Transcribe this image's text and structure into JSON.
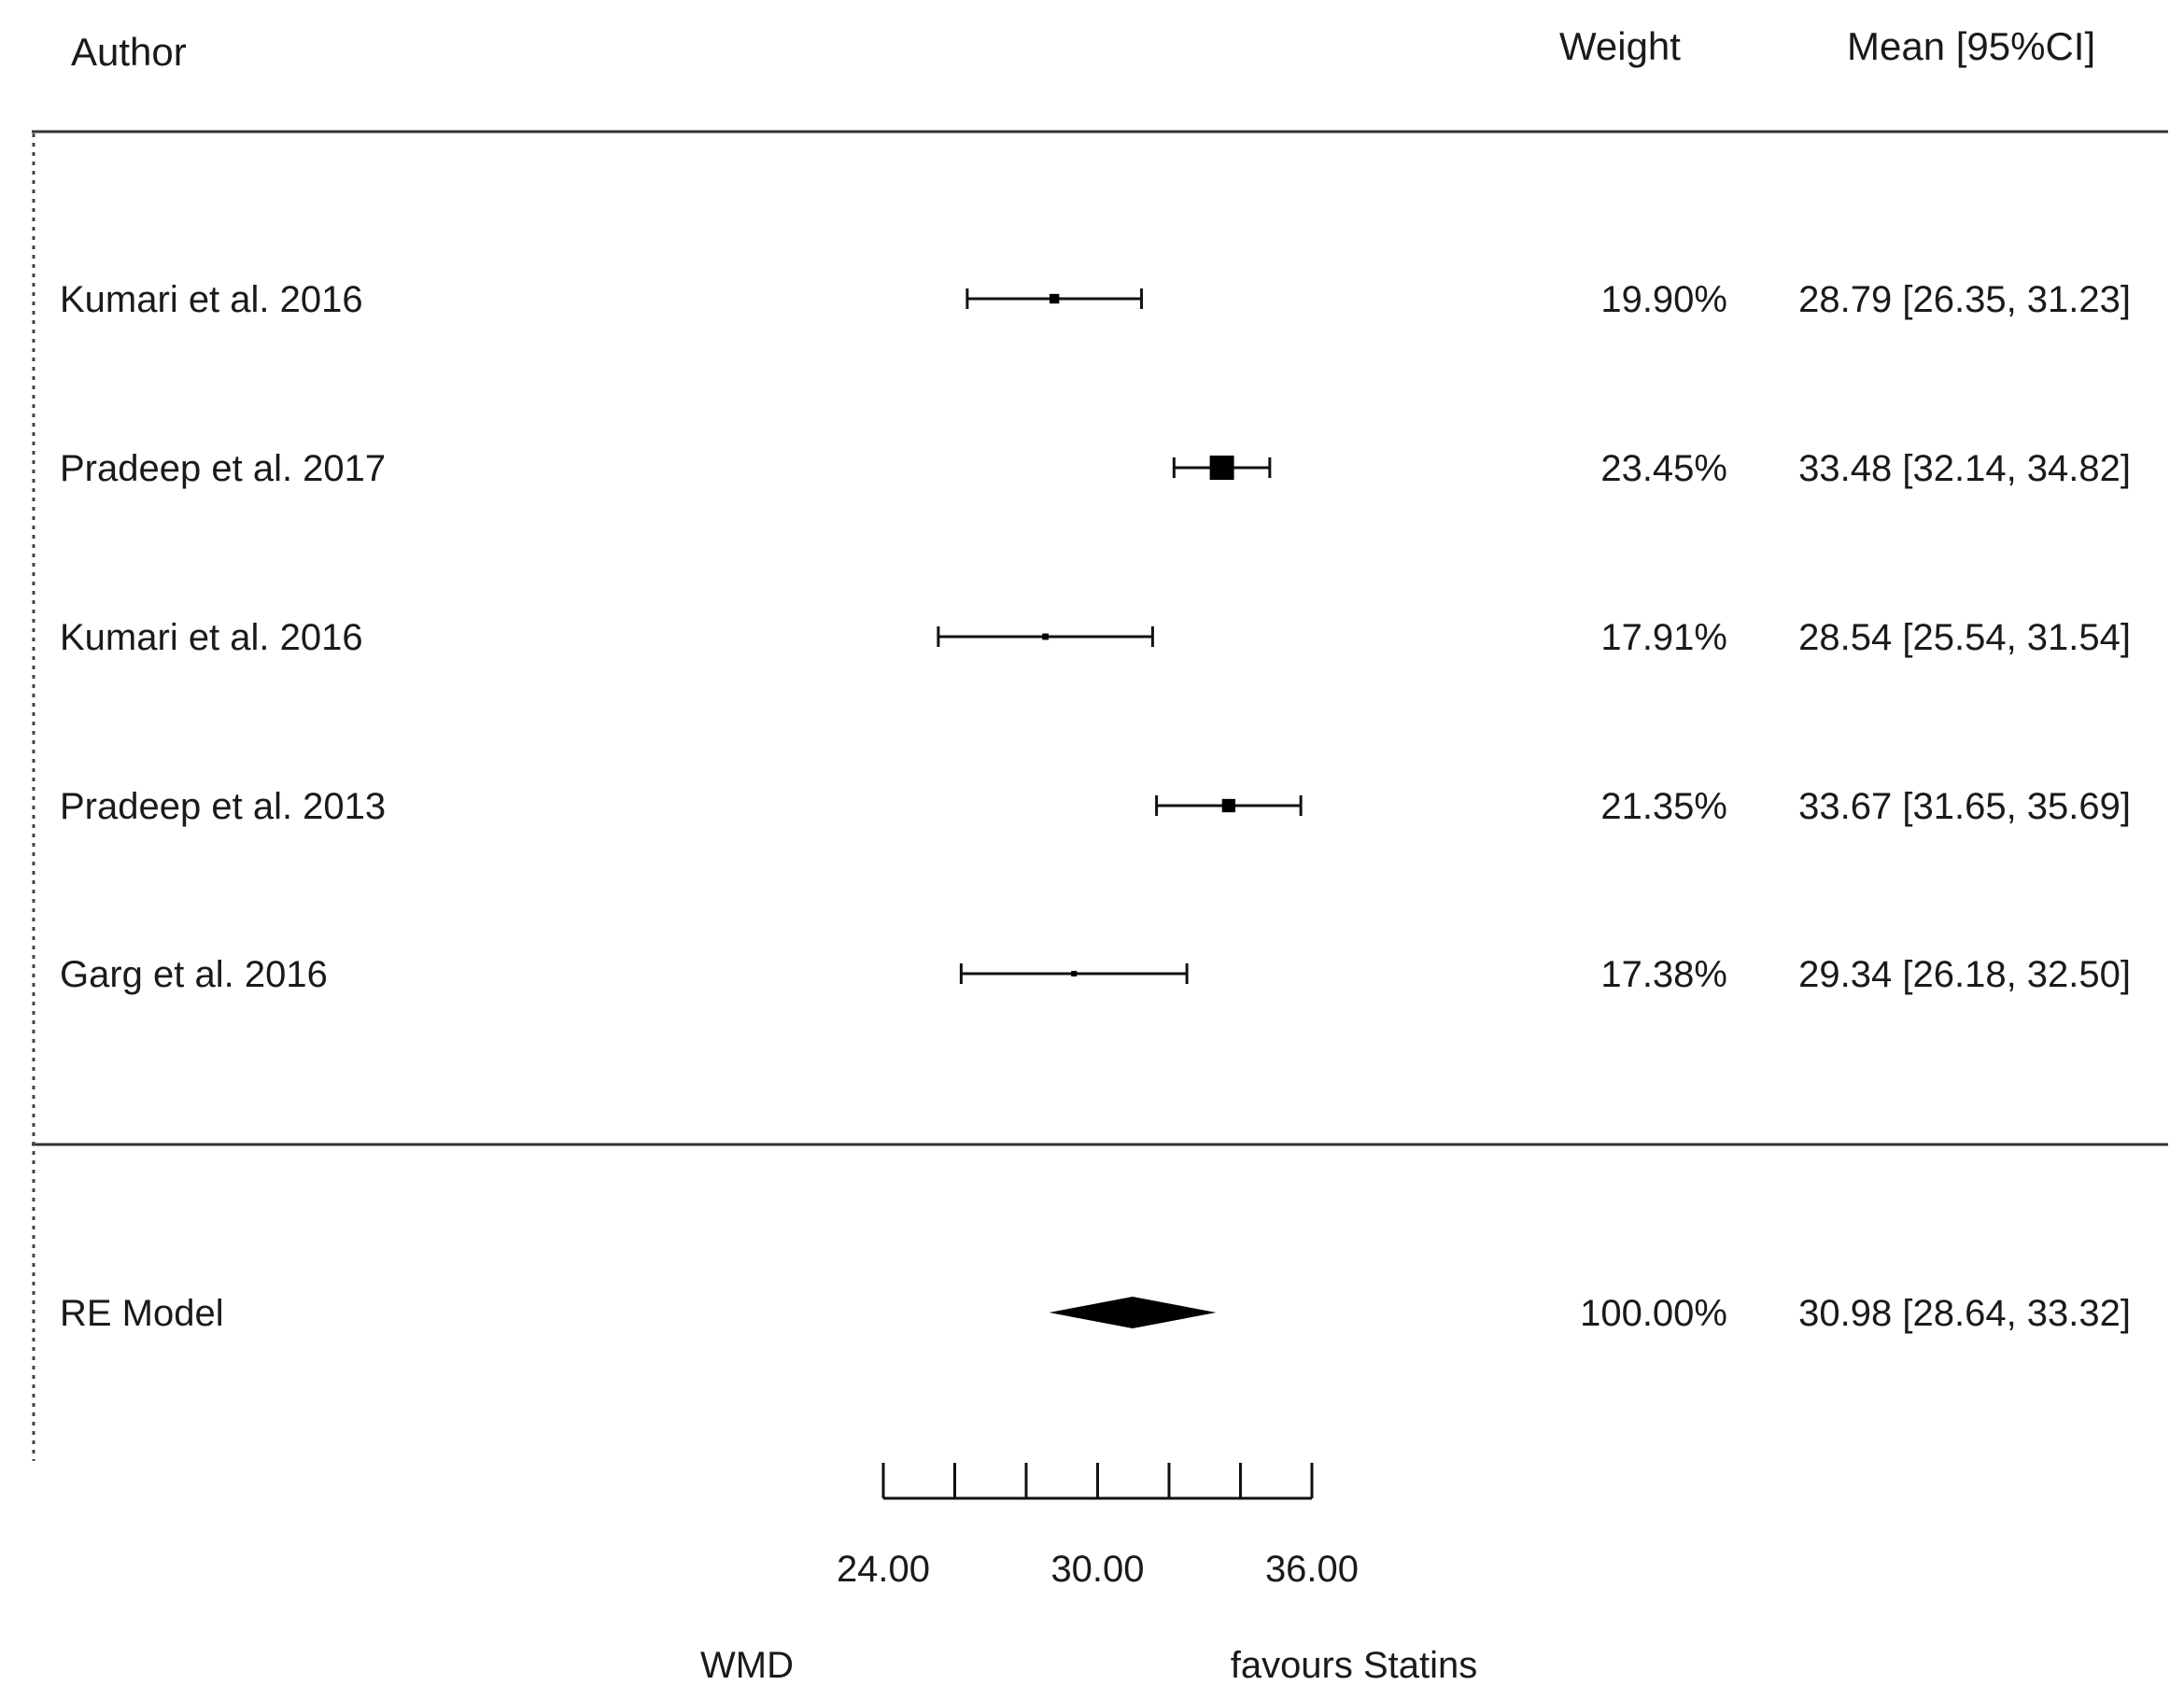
{
  "headers": {
    "author": "Author",
    "weight": "Weight",
    "mean": "Mean [95%CI]"
  },
  "chart_data": {
    "type": "forest",
    "studies": [
      {
        "author": "Kumari et al. 2016",
        "weight": "19.90%",
        "weight_value": 19.9,
        "mean": 28.79,
        "lower": 26.35,
        "upper": 31.23,
        "label": "28.79 [26.35, 31.23]"
      },
      {
        "author": "Pradeep et al. 2017",
        "weight": "23.45%",
        "weight_value": 23.45,
        "mean": 33.48,
        "lower": 32.14,
        "upper": 34.82,
        "label": "33.48 [32.14, 34.82]"
      },
      {
        "author": "Kumari et al. 2016",
        "weight": "17.91%",
        "weight_value": 17.91,
        "mean": 28.54,
        "lower": 25.54,
        "upper": 31.54,
        "label": "28.54 [25.54, 31.54]"
      },
      {
        "author": "Pradeep et al. 2013",
        "weight": "21.35%",
        "weight_value": 21.35,
        "mean": 33.67,
        "lower": 31.65,
        "upper": 35.69,
        "label": "33.67 [31.65, 35.69]"
      },
      {
        "author": "Garg et al. 2016",
        "weight": "17.38%",
        "weight_value": 17.38,
        "mean": 29.34,
        "lower": 26.18,
        "upper": 32.5,
        "label": "29.34 [26.18, 32.50]"
      }
    ],
    "summary": {
      "author": "RE Model",
      "weight": "100.00%",
      "mean": 30.98,
      "lower": 28.64,
      "upper": 33.32,
      "label": "30.98 [28.64, 33.32]"
    },
    "xlim": [
      24,
      36
    ],
    "x_ticks": [
      24,
      26,
      28,
      30,
      32,
      34,
      36
    ],
    "x_tick_labels": [
      "24.00",
      "30.00",
      "36.00"
    ],
    "xlabel_left": "WMD",
    "xlabel_right": "favours Statins"
  }
}
